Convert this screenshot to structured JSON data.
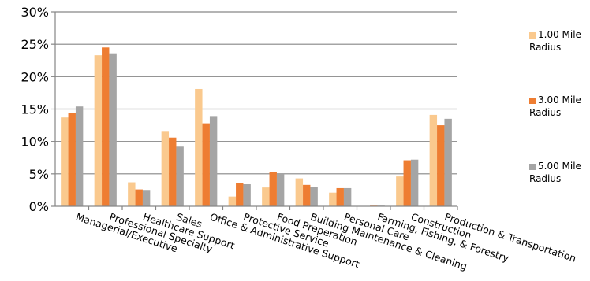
{
  "chart_data": {
    "type": "bar",
    "categories": [
      "Managerial/Executive",
      "Professional Specialty",
      "Healthcare Support",
      "Sales",
      "Office & Administrative Support",
      "Protective Service",
      "Food Preperation",
      "Building Maintenance & Cleaning",
      "Personal Care",
      "Farming, Fishing, & Forestry",
      "Construction",
      "Production & Transportation"
    ],
    "series": [
      {
        "name": "1.00 Mile Radius",
        "color": "#FAC98E",
        "values": [
          13.7,
          23.3,
          3.7,
          11.5,
          18.1,
          1.5,
          2.9,
          4.3,
          2.1,
          0.0,
          4.6,
          14.1
        ]
      },
      {
        "name": "3.00 Mile Radius",
        "color": "#EE7D32",
        "values": [
          14.4,
          24.5,
          2.6,
          10.6,
          12.8,
          3.6,
          5.3,
          3.3,
          2.8,
          0.1,
          7.1,
          12.5
        ]
      },
      {
        "name": "5.00 Mile Radius",
        "color": "#A5A5A5",
        "values": [
          15.4,
          23.6,
          2.4,
          9.2,
          13.8,
          3.4,
          5.1,
          3.0,
          2.8,
          0.1,
          7.2,
          13.5
        ]
      }
    ],
    "yticks": [
      "0%",
      "5%",
      "10%",
      "15%",
      "20%",
      "25%",
      "30%"
    ],
    "ylim": [
      0,
      30
    ],
    "grid": true,
    "legend": "right"
  }
}
